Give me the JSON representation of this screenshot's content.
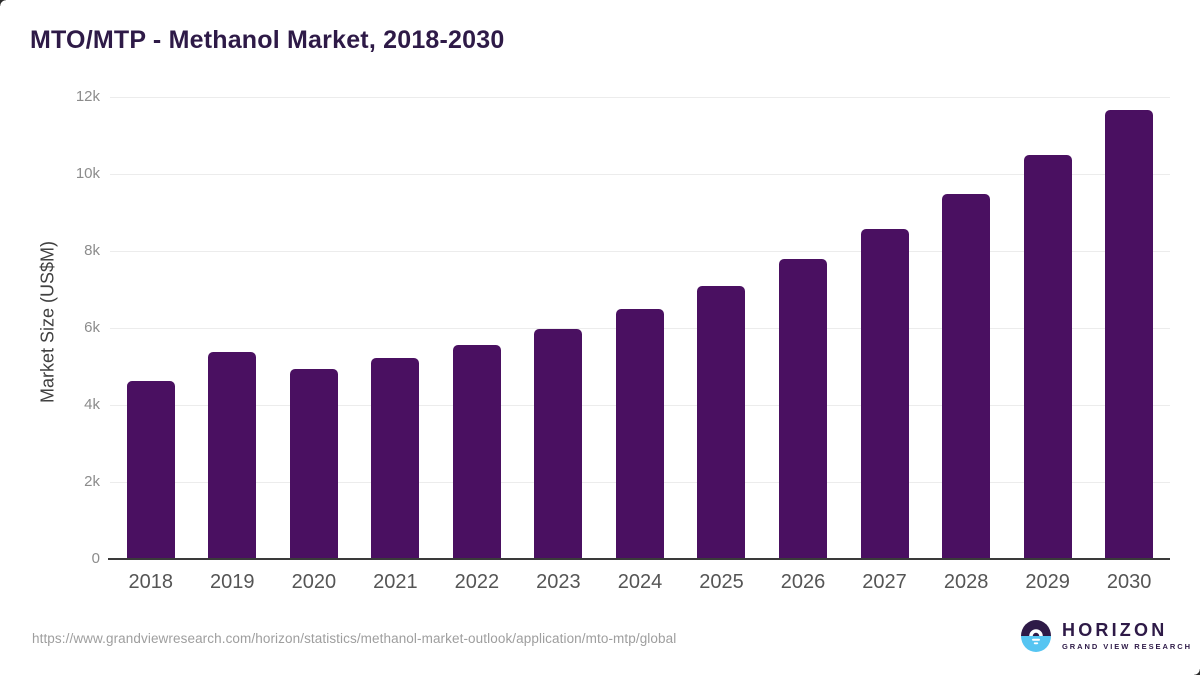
{
  "page": {
    "title": "MTO/MTP - Methanol Market, 2018-2030"
  },
  "chart_data": {
    "type": "bar",
    "title": "MTO/MTP - Methanol Market, 2018-2030",
    "categories": [
      "2018",
      "2019",
      "2020",
      "2021",
      "2022",
      "2023",
      "2024",
      "2025",
      "2026",
      "2027",
      "2028",
      "2029",
      "2030"
    ],
    "values": [
      4630,
      5380,
      4930,
      5230,
      5570,
      5980,
      6500,
      7100,
      7800,
      8580,
      9490,
      10500,
      11650
    ],
    "xlabel": "",
    "ylabel": "Market Size (US$M)",
    "ylim": [
      0,
      12000
    ],
    "yticks": [
      0,
      2000,
      4000,
      6000,
      8000,
      10000,
      12000
    ],
    "ytick_labels": [
      "0",
      "2k",
      "4k",
      "6k",
      "8k",
      "10k",
      "12k"
    ],
    "grid": true,
    "legend": false,
    "bar_color": "#4a1061"
  },
  "footer": {
    "source_url": "https://www.grandviewresearch.com/horizon/statistics/methanol-market-outlook/application/mto-mtp/global",
    "logo_name": "HORIZON",
    "logo_subtitle": "GRAND VIEW RESEARCH"
  },
  "colors": {
    "title_text": "#2e1a47",
    "bar": "#4a1061",
    "gridline": "#ececec",
    "axis_line": "#3a3a3a",
    "ytick_text": "#8c8c8c",
    "xtick_text": "#555555",
    "url_text": "#9e9e9e",
    "logo_purple": "#2e1a47",
    "logo_blue": "#56c5f2"
  }
}
